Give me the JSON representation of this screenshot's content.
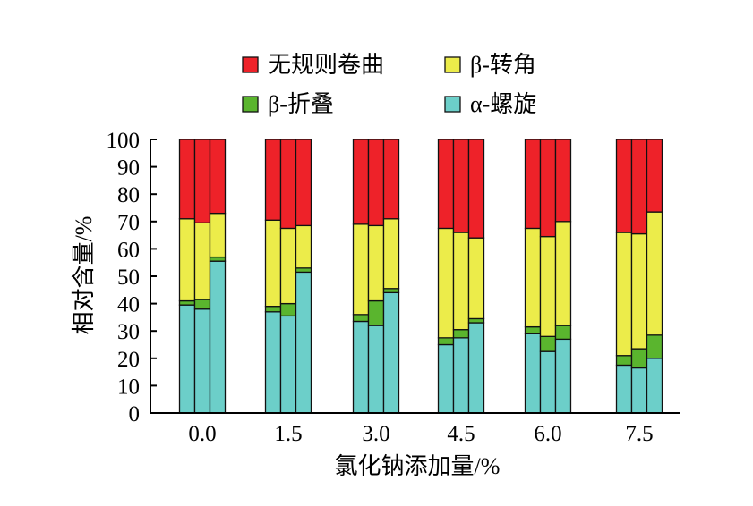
{
  "chart_data": {
    "type": "bar",
    "stacked": true,
    "xlabel": "氯化钠添加量/%",
    "ylabel": "相对含量/%",
    "ylim": [
      0,
      100
    ],
    "yticks": [
      0,
      10,
      20,
      30,
      40,
      50,
      60,
      70,
      80,
      90,
      100
    ],
    "categories": [
      "0.0",
      "1.5",
      "3.0",
      "4.5",
      "6.0",
      "7.5"
    ],
    "bars_per_category": 3,
    "legend_position": "top",
    "series": [
      {
        "name": "α-螺旋",
        "color": "#6ccfc9",
        "values": [
          [
            39.5,
            38,
            55.5
          ],
          [
            37,
            35.5,
            51.5
          ],
          [
            33.5,
            32,
            44
          ],
          [
            25,
            27.5,
            33
          ],
          [
            29,
            22.5,
            27
          ],
          [
            17.5,
            16.5,
            20
          ]
        ]
      },
      {
        "name": "β-折叠",
        "color": "#5ab52e",
        "values": [
          [
            1.5,
            3.5,
            1.5
          ],
          [
            2,
            4.5,
            1.5
          ],
          [
            2.5,
            9,
            1.5
          ],
          [
            2.5,
            3,
            1.5
          ],
          [
            2.5,
            5.5,
            5
          ],
          [
            3.5,
            7,
            8.5
          ]
        ]
      },
      {
        "name": "β-转角",
        "color": "#ecec4a",
        "values": [
          [
            30,
            28,
            16
          ],
          [
            31.5,
            27.5,
            15.5
          ],
          [
            33,
            27.5,
            25.5
          ],
          [
            40,
            35.5,
            29.5
          ],
          [
            36,
            36.5,
            38
          ],
          [
            45,
            42,
            45
          ]
        ]
      },
      {
        "name": "无规则卷曲",
        "color": "#ee2229",
        "values": [
          [
            29,
            30.5,
            27
          ],
          [
            29.5,
            32.5,
            31.5
          ],
          [
            31,
            31.5,
            29
          ],
          [
            32.5,
            34,
            36
          ],
          [
            32.5,
            35.5,
            30
          ],
          [
            34,
            34.5,
            26.5
          ]
        ]
      }
    ],
    "legend_order": [
      "无规则卷曲",
      "β-转角",
      "β-折叠",
      "α-螺旋"
    ]
  }
}
